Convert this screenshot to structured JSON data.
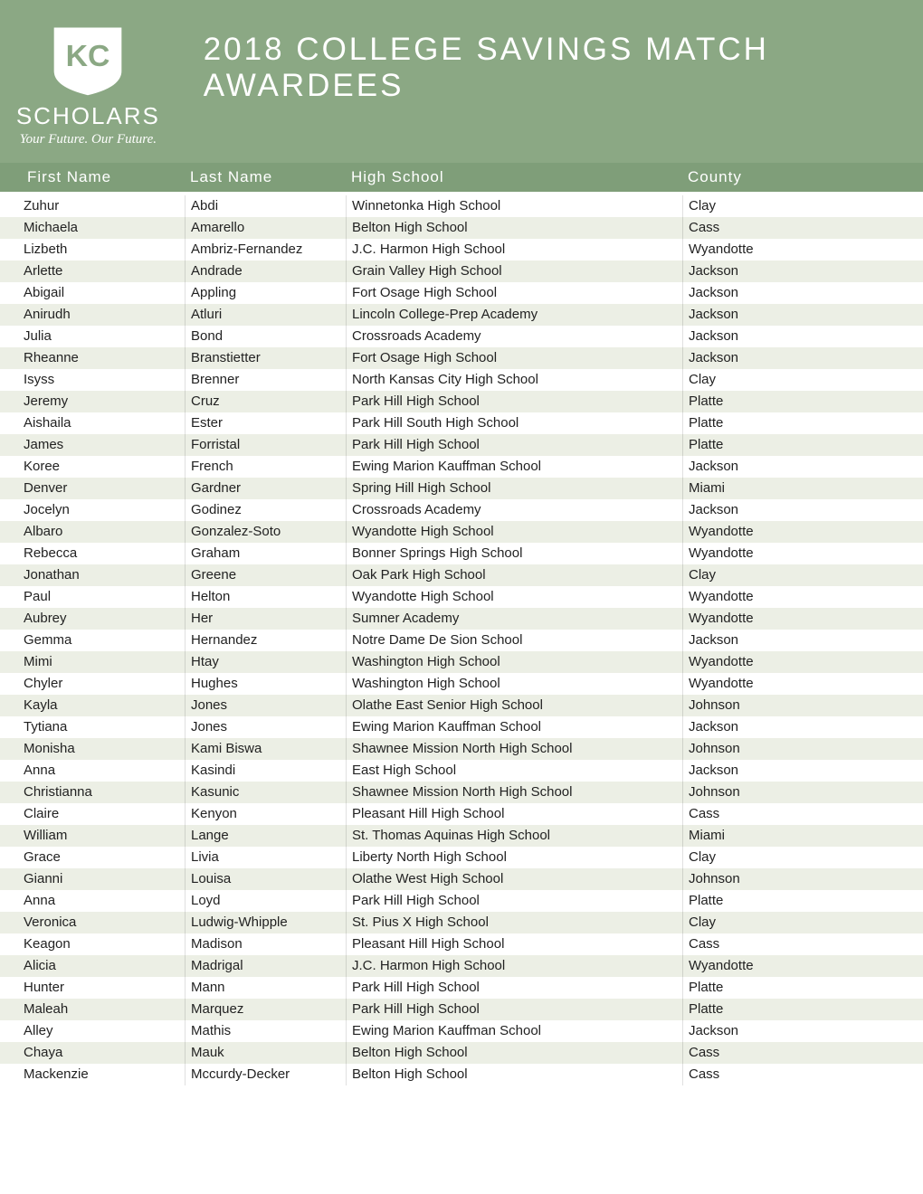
{
  "logo": {
    "kc": "KC",
    "scholars": "SCHOLARS",
    "tagline": "Your Future. Our Future."
  },
  "title": "2018 COLLEGE SAVINGS MATCH AWARDEES",
  "colors": {
    "header_band": "#8ba884",
    "table_header": "#7f9e79",
    "row_even": "#ecefe5",
    "row_odd": "#ffffff",
    "text_white": "#ffffff",
    "text_dark": "#222222"
  },
  "columns": {
    "first": "First Name",
    "last": "Last Name",
    "school": "High School",
    "county": "County"
  },
  "rows": [
    {
      "first": "Zuhur",
      "last": "Abdi",
      "school": "Winnetonka High School",
      "county": "Clay"
    },
    {
      "first": "Michaela",
      "last": "Amarello",
      "school": "Belton High School",
      "county": "Cass"
    },
    {
      "first": "Lizbeth",
      "last": "Ambriz-Fernandez",
      "school": "J.C. Harmon High School",
      "county": "Wyandotte"
    },
    {
      "first": "Arlette",
      "last": "Andrade",
      "school": "Grain Valley High School",
      "county": "Jackson"
    },
    {
      "first": "Abigail",
      "last": "Appling",
      "school": "Fort Osage High School",
      "county": "Jackson"
    },
    {
      "first": "Anirudh",
      "last": "Atluri",
      "school": "Lincoln College-Prep Academy",
      "county": "Jackson"
    },
    {
      "first": "Julia",
      "last": "Bond",
      "school": "Crossroads Academy",
      "county": "Jackson"
    },
    {
      "first": "Rheanne",
      "last": "Branstietter",
      "school": "Fort Osage High School",
      "county": "Jackson"
    },
    {
      "first": "Isyss",
      "last": "Brenner",
      "school": "North Kansas City High School",
      "county": "Clay"
    },
    {
      "first": "Jeremy",
      "last": "Cruz",
      "school": "Park Hill High School",
      "county": "Platte"
    },
    {
      "first": "Aishaila",
      "last": "Ester",
      "school": "Park Hill South High School",
      "county": "Platte"
    },
    {
      "first": "James",
      "last": "Forristal",
      "school": "Park Hill High School",
      "county": "Platte"
    },
    {
      "first": "Koree",
      "last": "French",
      "school": "Ewing Marion Kauffman School",
      "county": "Jackson"
    },
    {
      "first": "Denver",
      "last": "Gardner",
      "school": "Spring Hill High School",
      "county": "Miami"
    },
    {
      "first": "Jocelyn",
      "last": "Godinez",
      "school": "Crossroads Academy",
      "county": "Jackson"
    },
    {
      "first": "Albaro",
      "last": "Gonzalez-Soto",
      "school": "Wyandotte High School",
      "county": "Wyandotte"
    },
    {
      "first": "Rebecca",
      "last": "Graham",
      "school": "Bonner Springs High School",
      "county": "Wyandotte"
    },
    {
      "first": "Jonathan",
      "last": "Greene",
      "school": "Oak Park High School",
      "county": "Clay"
    },
    {
      "first": "Paul",
      "last": "Helton",
      "school": "Wyandotte High School",
      "county": "Wyandotte"
    },
    {
      "first": "Aubrey",
      "last": "Her",
      "school": "Sumner Academy",
      "county": "Wyandotte"
    },
    {
      "first": "Gemma",
      "last": "Hernandez",
      "school": "Notre Dame De Sion School",
      "county": "Jackson"
    },
    {
      "first": "Mimi",
      "last": "Htay",
      "school": "Washington High School",
      "county": "Wyandotte"
    },
    {
      "first": "Chyler",
      "last": "Hughes",
      "school": "Washington High School",
      "county": "Wyandotte"
    },
    {
      "first": "Kayla",
      "last": "Jones",
      "school": "Olathe East Senior High School",
      "county": "Johnson"
    },
    {
      "first": "Tytiana",
      "last": "Jones",
      "school": "Ewing Marion Kauffman School",
      "county": "Jackson"
    },
    {
      "first": "Monisha",
      "last": "Kami Biswa",
      "school": "Shawnee Mission North High School",
      "county": "Johnson"
    },
    {
      "first": "Anna",
      "last": "Kasindi",
      "school": "East High School",
      "county": "Jackson"
    },
    {
      "first": "Christianna",
      "last": "Kasunic",
      "school": "Shawnee Mission North High School",
      "county": "Johnson"
    },
    {
      "first": "Claire",
      "last": "Kenyon",
      "school": "Pleasant Hill High School",
      "county": "Cass"
    },
    {
      "first": "William",
      "last": "Lange",
      "school": "St. Thomas Aquinas High School",
      "county": "Miami"
    },
    {
      "first": "Grace",
      "last": "Livia",
      "school": "Liberty North High School",
      "county": "Clay"
    },
    {
      "first": "Gianni",
      "last": "Louisa",
      "school": "Olathe West High School",
      "county": "Johnson"
    },
    {
      "first": "Anna",
      "last": "Loyd",
      "school": "Park Hill High School",
      "county": "Platte"
    },
    {
      "first": "Veronica",
      "last": "Ludwig-Whipple",
      "school": "St. Pius X High School",
      "county": "Clay"
    },
    {
      "first": "Keagon",
      "last": "Madison",
      "school": "Pleasant Hill High School",
      "county": "Cass"
    },
    {
      "first": "Alicia",
      "last": "Madrigal",
      "school": "J.C. Harmon High School",
      "county": "Wyandotte"
    },
    {
      "first": "Hunter",
      "last": "Mann",
      "school": "Park Hill High School",
      "county": "Platte"
    },
    {
      "first": "Maleah",
      "last": "Marquez",
      "school": "Park Hill High School",
      "county": "Platte"
    },
    {
      "first": "Alley",
      "last": "Mathis",
      "school": "Ewing Marion Kauffman School",
      "county": "Jackson"
    },
    {
      "first": "Chaya",
      "last": "Mauk",
      "school": "Belton High School",
      "county": "Cass"
    },
    {
      "first": "Mackenzie",
      "last": "Mccurdy-Decker",
      "school": "Belton High School",
      "county": "Cass"
    }
  ]
}
